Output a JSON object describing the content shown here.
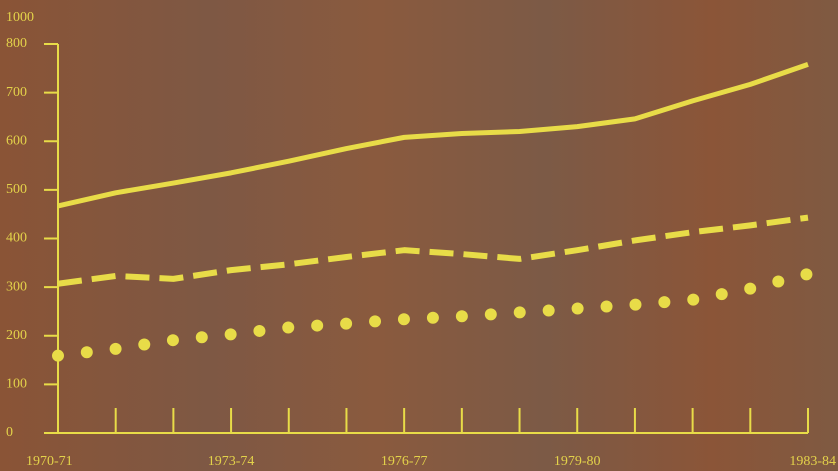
{
  "chart_data": {
    "type": "line",
    "annotations": [
      "1000"
    ],
    "categories": [
      "1970-71",
      null,
      null,
      "1973-74",
      null,
      null,
      "1976-77",
      null,
      null,
      "1979-80",
      null,
      null,
      null,
      "1983-84"
    ],
    "series": [
      {
        "color": "#e8dc48",
        "style": "solid",
        "values": [
          467,
          494,
          514,
          535,
          559,
          585,
          608,
          616,
          620,
          630,
          646,
          683,
          717,
          758
        ]
      },
      {
        "color": "#e8dc48",
        "style": "dashed",
        "values": [
          307,
          323,
          317,
          335,
          347,
          362,
          376,
          368,
          358,
          376,
          396,
          413,
          427,
          443
        ]
      },
      {
        "color": "#e8dc48",
        "style": "dotted",
        "values": [
          159,
          173,
          191,
          203,
          217,
          225,
          234,
          240,
          248,
          256,
          264,
          274,
          297,
          327
        ]
      }
    ],
    "ylim": [
      0,
      800
    ],
    "yticks": [
      0,
      100,
      200,
      300,
      400,
      500,
      600,
      700,
      800
    ],
    "axis_color": "#e8dc48"
  }
}
